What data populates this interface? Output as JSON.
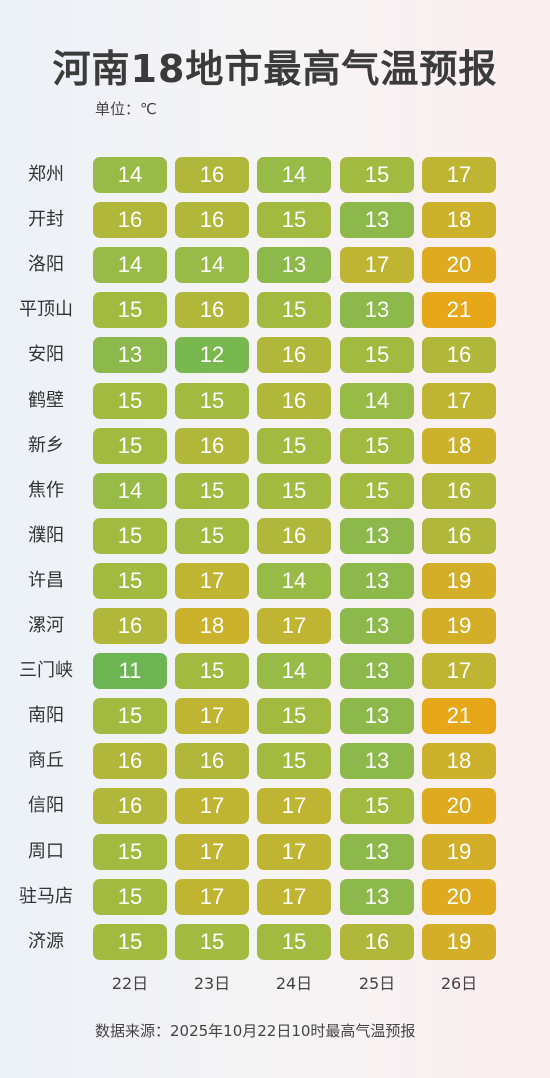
{
  "header": {
    "title": "河南18地市最高气温预报",
    "unit": "单位：℃"
  },
  "chart_data": {
    "type": "heatmap",
    "title": "河南18地市最高气温预报",
    "x": [
      "22日",
      "23日",
      "24日",
      "25日",
      "26日"
    ],
    "rows": [
      {
        "city": "郑州",
        "values": [
          14,
          16,
          14,
          15,
          17
        ]
      },
      {
        "city": "开封",
        "values": [
          16,
          16,
          15,
          13,
          18
        ]
      },
      {
        "city": "洛阳",
        "values": [
          14,
          14,
          13,
          17,
          20
        ]
      },
      {
        "city": "平顶山",
        "values": [
          15,
          16,
          15,
          13,
          21
        ]
      },
      {
        "city": "安阳",
        "values": [
          13,
          12,
          16,
          15,
          16
        ]
      },
      {
        "city": "鹤壁",
        "values": [
          15,
          15,
          16,
          14,
          17
        ]
      },
      {
        "city": "新乡",
        "values": [
          15,
          16,
          15,
          15,
          18
        ]
      },
      {
        "city": "焦作",
        "values": [
          14,
          15,
          15,
          15,
          16
        ]
      },
      {
        "city": "濮阳",
        "values": [
          15,
          15,
          16,
          13,
          16
        ]
      },
      {
        "city": "许昌",
        "values": [
          15,
          17,
          14,
          13,
          19
        ]
      },
      {
        "city": "漯河",
        "values": [
          16,
          18,
          17,
          13,
          19
        ]
      },
      {
        "city": "三门峡",
        "values": [
          11,
          15,
          14,
          13,
          17
        ]
      },
      {
        "city": "南阳",
        "values": [
          15,
          17,
          15,
          13,
          21
        ]
      },
      {
        "city": "商丘",
        "values": [
          16,
          16,
          15,
          13,
          18
        ]
      },
      {
        "city": "信阳",
        "values": [
          16,
          17,
          17,
          15,
          20
        ]
      },
      {
        "city": "周口",
        "values": [
          15,
          17,
          17,
          13,
          19
        ]
      },
      {
        "city": "驻马店",
        "values": [
          15,
          17,
          17,
          13,
          20
        ]
      },
      {
        "city": "济源",
        "values": [
          15,
          15,
          15,
          16,
          19
        ]
      }
    ],
    "colors": {
      "11": "#6db553",
      "12": "#78b84f",
      "13": "#8db84b",
      "14": "#98ba46",
      "15": "#a3ba41",
      "16": "#b0b73a",
      "17": "#bfb533",
      "18": "#cbb12c",
      "19": "#d3ae28",
      "20": "#ddaa20",
      "21": "#e6a719"
    }
  },
  "footer": {
    "source": "数据来源：2025年10月22日10时最高气温预报"
  }
}
